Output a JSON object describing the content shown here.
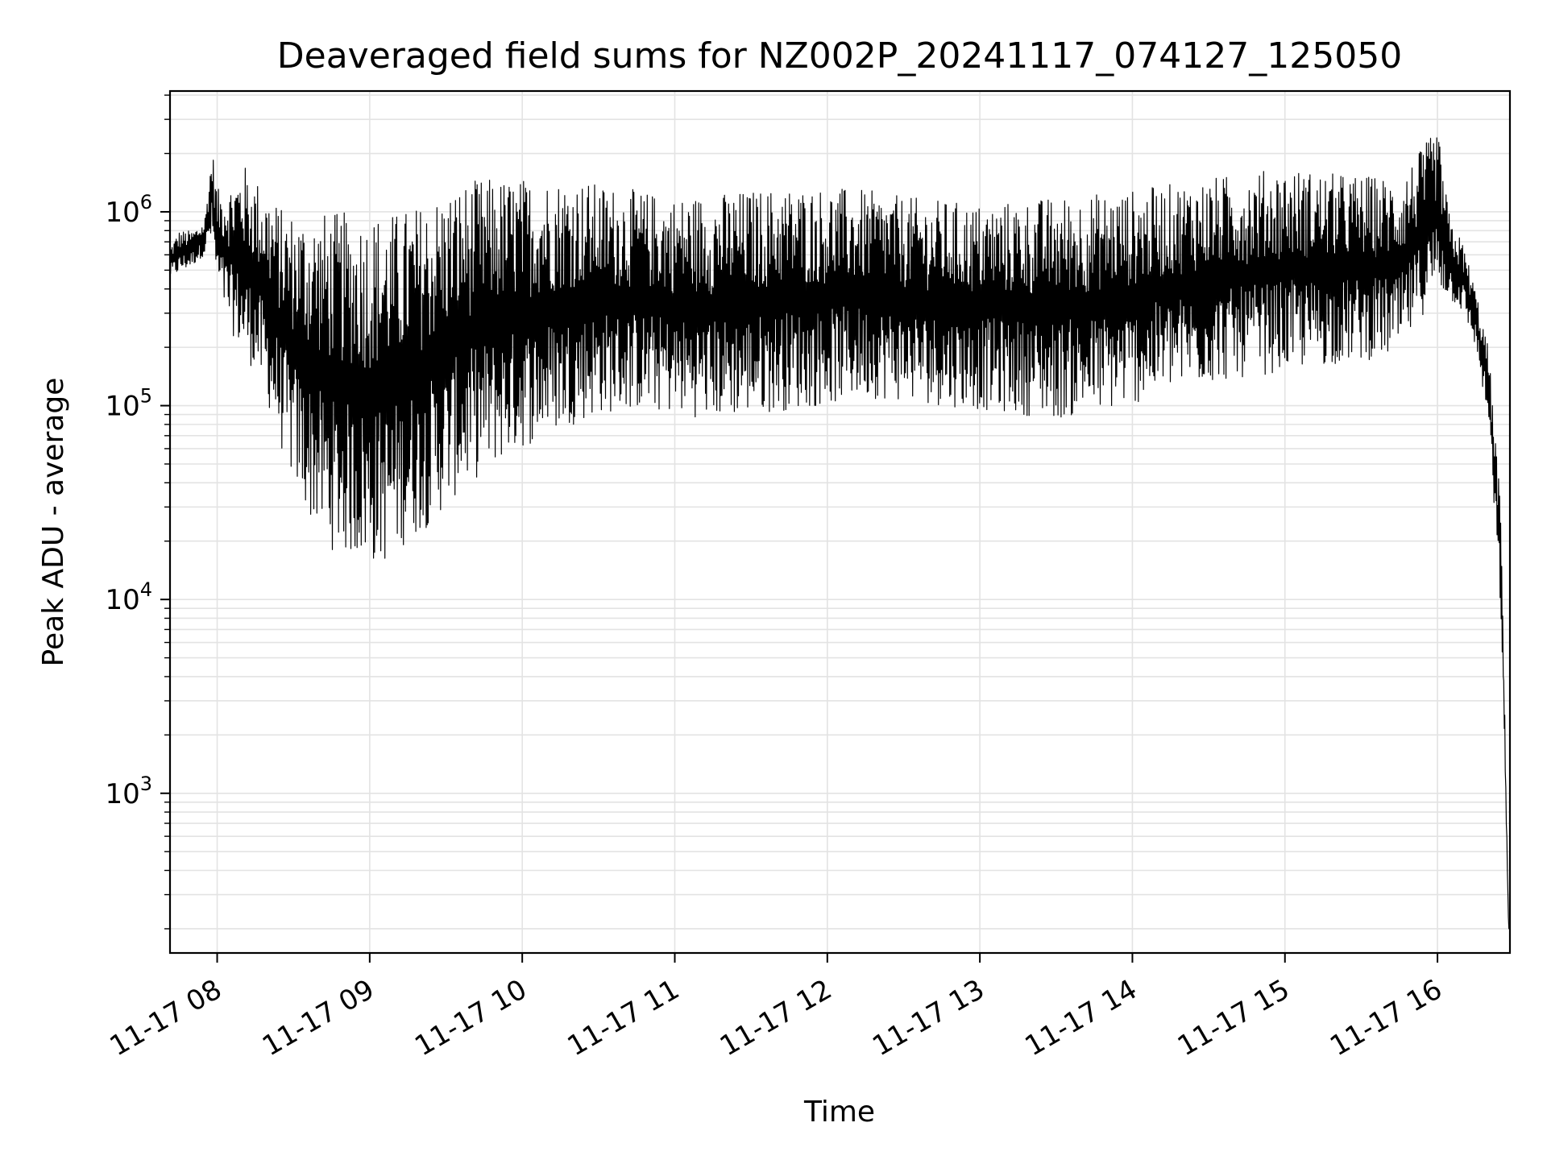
{
  "chart_data": {
    "type": "line",
    "title": "Deaveraged field sums for NZ002P_20241117_074127_125050",
    "xlabel": "Time",
    "ylabel": "Peak ADU - average",
    "yscale": "log",
    "ylim": [
      150,
      4200000
    ],
    "xlim": [
      "2024-11-17T07:41:27",
      "2024-11-17T16:28:30"
    ],
    "grid": true,
    "line_color": "#000000",
    "grid_color": "#e3e3e3",
    "x_ticks": [
      {
        "time": "2024-11-17T08:00:00",
        "label": "11-17 08"
      },
      {
        "time": "2024-11-17T09:00:00",
        "label": "11-17 09"
      },
      {
        "time": "2024-11-17T10:00:00",
        "label": "11-17 10"
      },
      {
        "time": "2024-11-17T11:00:00",
        "label": "11-17 11"
      },
      {
        "time": "2024-11-17T12:00:00",
        "label": "11-17 12"
      },
      {
        "time": "2024-11-17T13:00:00",
        "label": "11-17 13"
      },
      {
        "time": "2024-11-17T14:00:00",
        "label": "11-17 14"
      },
      {
        "time": "2024-11-17T15:00:00",
        "label": "11-17 15"
      },
      {
        "time": "2024-11-17T16:00:00",
        "label": "11-17 16"
      }
    ],
    "y_ticks": [
      {
        "value": 1000,
        "base": "10",
        "exp": "3"
      },
      {
        "value": 10000,
        "base": "10",
        "exp": "4"
      },
      {
        "value": 100000,
        "base": "10",
        "exp": "5"
      },
      {
        "value": 1000000,
        "base": "10",
        "exp": "6"
      }
    ],
    "series": [
      {
        "x": [
          "2024-11-17T07:41",
          "2024-11-17T07:45",
          "2024-11-17T07:50",
          "2024-11-17T07:55",
          "2024-11-17T07:58",
          "2024-11-17T08:00",
          "2024-11-17T08:05",
          "2024-11-17T08:10",
          "2024-11-17T08:15",
          "2024-11-17T08:20",
          "2024-11-17T08:25",
          "2024-11-17T08:30",
          "2024-11-17T08:35",
          "2024-11-17T08:40",
          "2024-11-17T08:45",
          "2024-11-17T08:50",
          "2024-11-17T08:55",
          "2024-11-17T09:00",
          "2024-11-17T09:05",
          "2024-11-17T09:10",
          "2024-11-17T09:15",
          "2024-11-17T09:20",
          "2024-11-17T09:25",
          "2024-11-17T09:30",
          "2024-11-17T09:35",
          "2024-11-17T09:40",
          "2024-11-17T09:45",
          "2024-11-17T09:50",
          "2024-11-17T09:55",
          "2024-11-17T10:00",
          "2024-11-17T10:10",
          "2024-11-17T10:20",
          "2024-11-17T10:30",
          "2024-11-17T10:45",
          "2024-11-17T11:00",
          "2024-11-17T11:15",
          "2024-11-17T11:30",
          "2024-11-17T11:45",
          "2024-11-17T12:00",
          "2024-11-17T12:15",
          "2024-11-17T12:30",
          "2024-11-17T12:45",
          "2024-11-17T13:00",
          "2024-11-17T13:15",
          "2024-11-17T13:30",
          "2024-11-17T13:45",
          "2024-11-17T14:00",
          "2024-11-17T14:15",
          "2024-11-17T14:30",
          "2024-11-17T14:45",
          "2024-11-17T15:00",
          "2024-11-17T15:15",
          "2024-11-17T15:30",
          "2024-11-17T15:45",
          "2024-11-17T16:00",
          "2024-11-17T16:05",
          "2024-11-17T16:10",
          "2024-11-17T16:15",
          "2024-11-17T16:20",
          "2024-11-17T16:25",
          "2024-11-17T16:28"
        ],
        "y_low": [
          450000,
          480000,
          520000,
          600000,
          700000,
          400000,
          250000,
          180000,
          150000,
          100000,
          60000,
          40000,
          28000,
          22000,
          18000,
          17000,
          16000,
          15000,
          15000,
          17000,
          20000,
          22000,
          25000,
          30000,
          35000,
          40000,
          45000,
          50000,
          55000,
          60000,
          70000,
          80000,
          90000,
          95000,
          90000,
          85000,
          90000,
          95000,
          100000,
          110000,
          105000,
          100000,
          95000,
          90000,
          85000,
          90000,
          100000,
          120000,
          130000,
          140000,
          150000,
          160000,
          170000,
          180000,
          400000,
          350000,
          300000,
          200000,
          80000,
          8000,
          200
        ],
        "y_high": [
          650000,
          800000,
          800000,
          900000,
          2200000,
          1300000,
          1400000,
          1800000,
          1500000,
          1300000,
          1050000,
          1000000,
          1000000,
          1000000,
          1000000,
          1000000,
          1000000,
          1000000,
          1000000,
          1000000,
          1050000,
          1100000,
          1200000,
          1300000,
          1400000,
          1450000,
          1500000,
          1500000,
          1500000,
          1500000,
          1500000,
          1500000,
          1400000,
          1300000,
          1200000,
          1250000,
          1300000,
          1350000,
          1350000,
          1300000,
          1200000,
          1150000,
          1100000,
          1150000,
          1200000,
          1250000,
          1300000,
          1400000,
          1500000,
          1600000,
          1700000,
          1600000,
          1550000,
          1500000,
          2700000,
          900000,
          700000,
          400000,
          200000,
          30000,
          200
        ]
      }
    ]
  }
}
